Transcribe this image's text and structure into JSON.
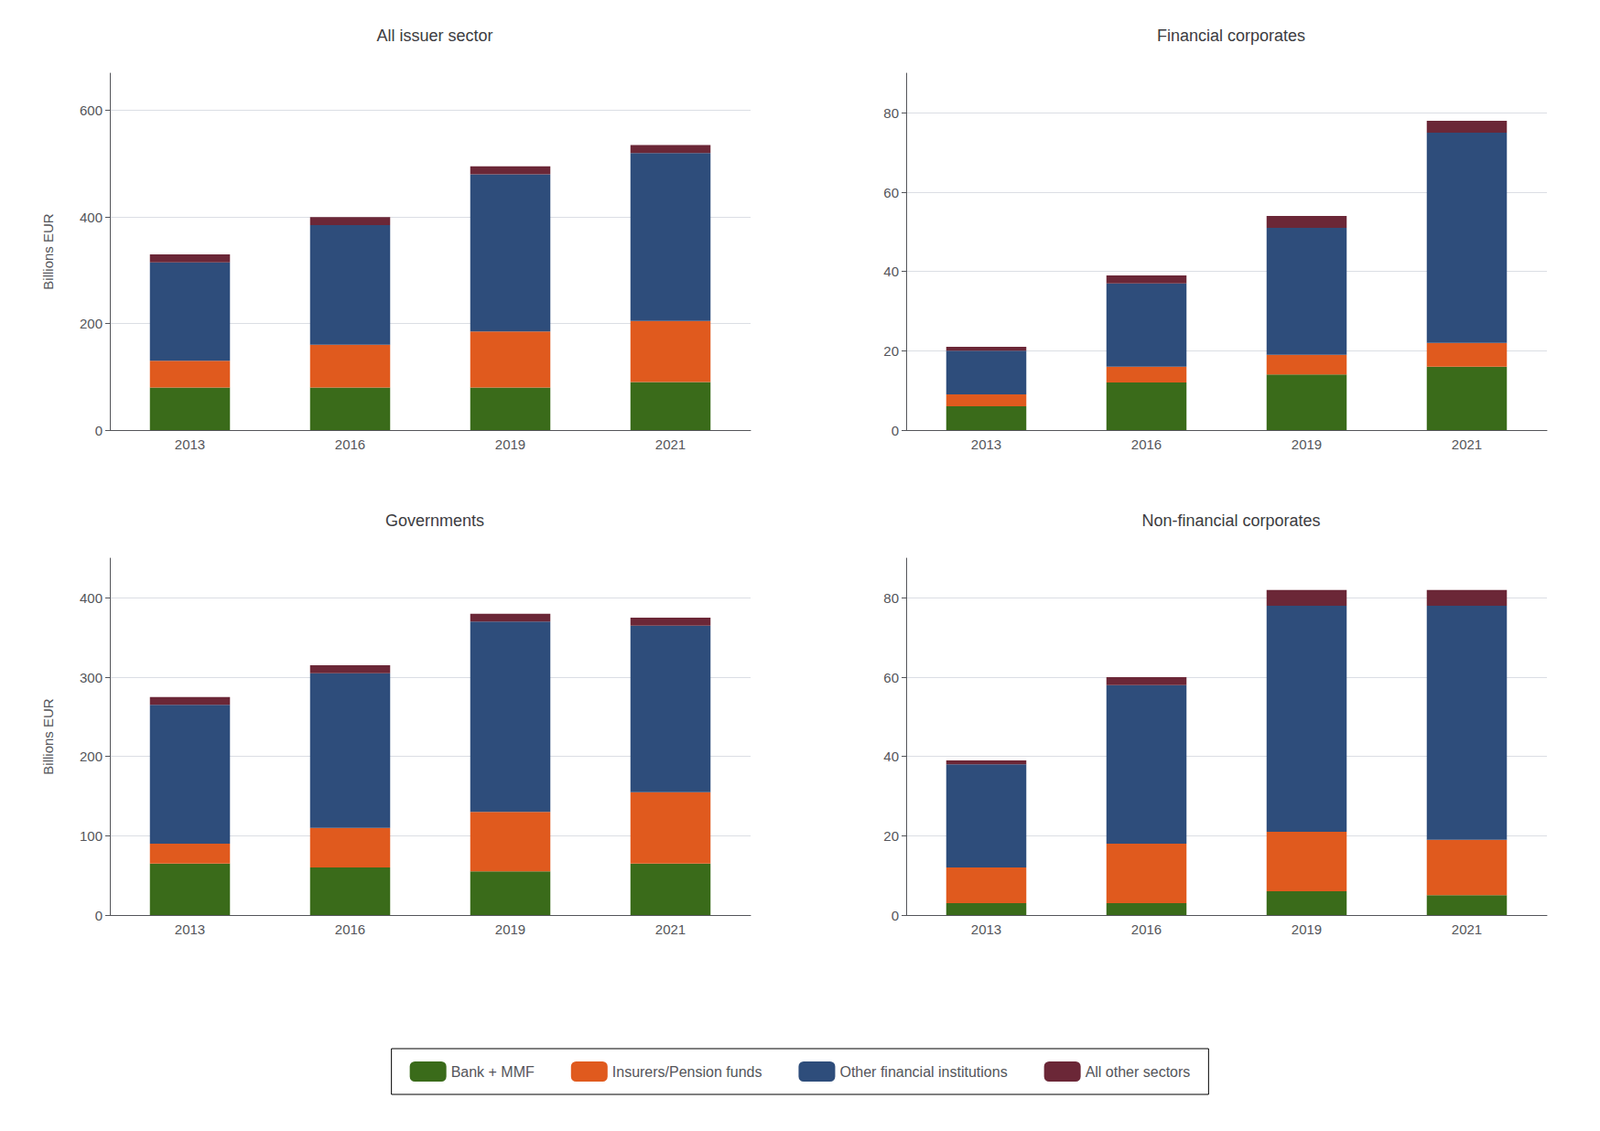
{
  "chart_data": [
    {
      "type": "bar",
      "title": "All issuer sector",
      "stacked": true,
      "grid": true,
      "legend": "bottom",
      "ylabel": "Billions EUR",
      "categories": [
        "2013",
        "2016",
        "2019",
        "2021"
      ],
      "series": [
        {
          "name": "Bank + MMF",
          "color": "#3a6b1a",
          "values": [
            80,
            80,
            80,
            90
          ]
        },
        {
          "name": "Insurers/Pension funds",
          "color": "#e05a1e",
          "values": [
            50,
            80,
            105,
            115
          ]
        },
        {
          "name": "Other financial institutions",
          "color": "#2e4d7b",
          "values": [
            185,
            225,
            295,
            315
          ]
        },
        {
          "name": "All other sectors",
          "color": "#6b2737",
          "values": [
            15,
            15,
            15,
            15
          ]
        }
      ],
      "ylim": [
        0,
        670
      ],
      "yticks": [
        0,
        200,
        400,
        600
      ]
    },
    {
      "type": "bar",
      "title": "Financial corporates",
      "stacked": true,
      "grid": true,
      "legend": "bottom",
      "categories": [
        "2013",
        "2016",
        "2019",
        "2021"
      ],
      "series": [
        {
          "name": "Bank + MMF",
          "color": "#3a6b1a",
          "values": [
            6,
            12,
            14,
            16
          ]
        },
        {
          "name": "Insurers/Pension funds",
          "color": "#e05a1e",
          "values": [
            3,
            4,
            5,
            6
          ]
        },
        {
          "name": "Other financial institutions",
          "color": "#2e4d7b",
          "values": [
            11,
            21,
            32,
            53
          ]
        },
        {
          "name": "All other sectors",
          "color": "#6b2737",
          "values": [
            1,
            2,
            3,
            3
          ]
        }
      ],
      "ylim": [
        0,
        90
      ],
      "yticks": [
        0,
        20,
        40,
        60,
        80
      ]
    },
    {
      "type": "bar",
      "title": "Governments",
      "stacked": true,
      "grid": true,
      "legend": "bottom",
      "ylabel": "Billions EUR",
      "categories": [
        "2013",
        "2016",
        "2019",
        "2021"
      ],
      "series": [
        {
          "name": "Bank + MMF",
          "color": "#3a6b1a",
          "values": [
            65,
            60,
            55,
            65
          ]
        },
        {
          "name": "Insurers/Pension funds",
          "color": "#e05a1e",
          "values": [
            25,
            50,
            75,
            90
          ]
        },
        {
          "name": "Other financial institutions",
          "color": "#2e4d7b",
          "values": [
            175,
            195,
            240,
            210
          ]
        },
        {
          "name": "All other sectors",
          "color": "#6b2737",
          "values": [
            10,
            10,
            10,
            10
          ]
        }
      ],
      "ylim": [
        0,
        450
      ],
      "yticks": [
        0,
        100,
        200,
        300,
        400
      ]
    },
    {
      "type": "bar",
      "title": "Non-financial corporates",
      "stacked": true,
      "grid": true,
      "legend": "bottom",
      "categories": [
        "2013",
        "2016",
        "2019",
        "2021"
      ],
      "series": [
        {
          "name": "Bank + MMF",
          "color": "#3a6b1a",
          "values": [
            3,
            3,
            6,
            5
          ]
        },
        {
          "name": "Insurers/Pension funds",
          "color": "#e05a1e",
          "values": [
            9,
            15,
            15,
            14
          ]
        },
        {
          "name": "Other financial institutions",
          "color": "#2e4d7b",
          "values": [
            26,
            40,
            57,
            59
          ]
        },
        {
          "name": "All other sectors",
          "color": "#6b2737",
          "values": [
            1,
            2,
            4,
            4
          ]
        }
      ],
      "ylim": [
        0,
        90
      ],
      "yticks": [
        0,
        20,
        40,
        60,
        80
      ]
    }
  ]
}
